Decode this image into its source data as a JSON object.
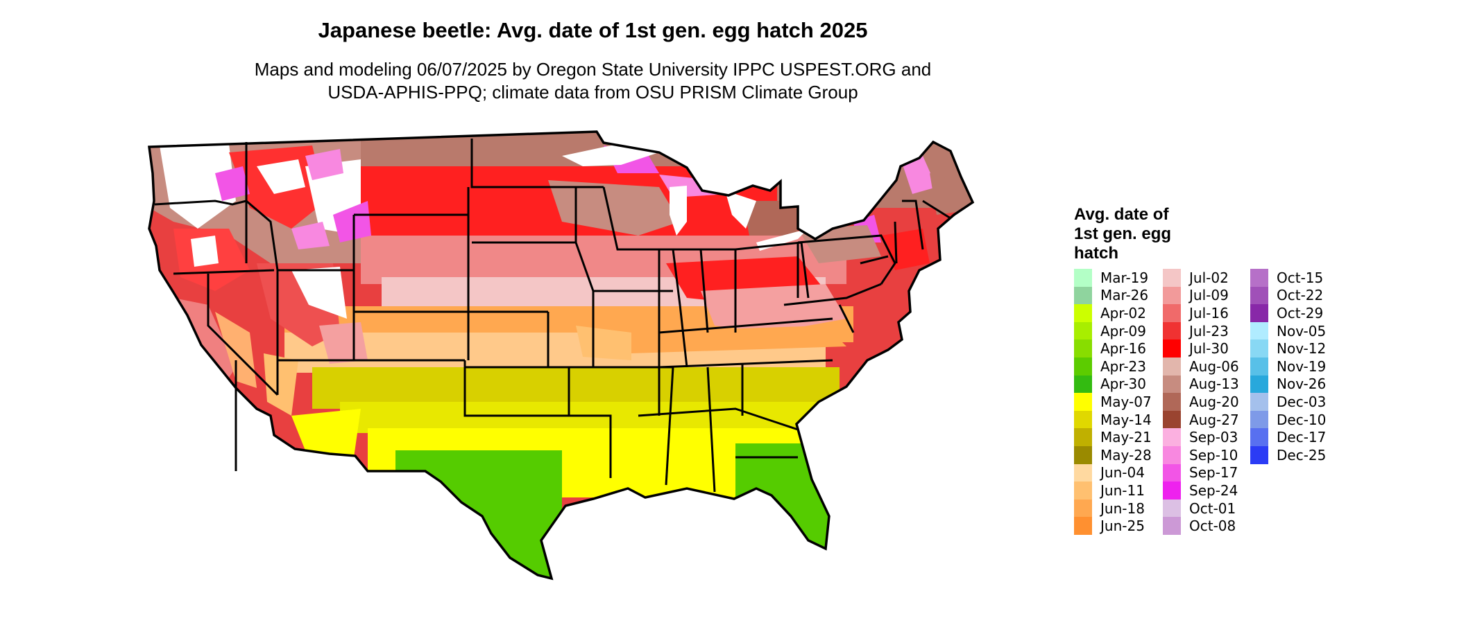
{
  "title": "Japanese beetle: Avg. date of 1st gen. egg hatch 2025",
  "subtitle": {
    "line1": "Maps and modeling 06/07/2025 by Oregon State University IPPC USPEST.ORG and",
    "line2": "USDA-APHIS-PPQ; climate data from OSU PRISM Climate Group"
  },
  "legend": {
    "title_lines": [
      "Avg. date of",
      "1st gen. egg",
      "hatch"
    ],
    "columns": [
      [
        {
          "label": "Mar-19",
          "color": "#b3ffc6"
        },
        {
          "label": "Mar-26",
          "color": "#8fd49e"
        },
        {
          "label": "Apr-02",
          "color": "#ccff00"
        },
        {
          "label": "Apr-09",
          "color": "#a8ee00"
        },
        {
          "label": "Apr-16",
          "color": "#88dd00"
        },
        {
          "label": "Apr-23",
          "color": "#5ccc00"
        },
        {
          "label": "Apr-30",
          "color": "#33bb11"
        },
        {
          "label": "May-07",
          "color": "#ffff00"
        },
        {
          "label": "May-14",
          "color": "#e0d800"
        },
        {
          "label": "May-21",
          "color": "#c0b000"
        },
        {
          "label": "May-28",
          "color": "#9a8a00"
        },
        {
          "label": "Jun-04",
          "color": "#ffd9a0"
        },
        {
          "label": "Jun-11",
          "color": "#ffc070"
        },
        {
          "label": "Jun-18",
          "color": "#ffa850"
        },
        {
          "label": "Jun-25",
          "color": "#ff9030"
        }
      ],
      [
        {
          "label": "Jul-02",
          "color": "#f4c6c6"
        },
        {
          "label": "Jul-09",
          "color": "#f29a9a"
        },
        {
          "label": "Jul-16",
          "color": "#f06a6a"
        },
        {
          "label": "Jul-23",
          "color": "#f03232"
        },
        {
          "label": "Jul-30",
          "color": "#ff0000"
        },
        {
          "label": "Aug-06",
          "color": "#e2b6ac"
        },
        {
          "label": "Aug-13",
          "color": "#c78c80"
        },
        {
          "label": "Aug-20",
          "color": "#b06858"
        },
        {
          "label": "Aug-27",
          "color": "#9a4430"
        },
        {
          "label": "Sep-03",
          "color": "#fbb0e0"
        },
        {
          "label": "Sep-10",
          "color": "#f888e0"
        },
        {
          "label": "Sep-17",
          "color": "#f255e6"
        },
        {
          "label": "Sep-24",
          "color": "#ee22ee"
        },
        {
          "label": "Oct-01",
          "color": "#dcc0e4"
        },
        {
          "label": "Oct-08",
          "color": "#cc99d6"
        }
      ],
      [
        {
          "label": "Oct-15",
          "color": "#b670c8"
        },
        {
          "label": "Oct-22",
          "color": "#a050b8"
        },
        {
          "label": "Oct-29",
          "color": "#8828a8"
        },
        {
          "label": "Nov-05",
          "color": "#b0ecff"
        },
        {
          "label": "Nov-12",
          "color": "#88d8f4"
        },
        {
          "label": "Nov-19",
          "color": "#58c0e8"
        },
        {
          "label": "Nov-26",
          "color": "#28a8dc"
        },
        {
          "label": "Dec-03",
          "color": "#a4c0ec"
        },
        {
          "label": "Dec-10",
          "color": "#7e9ae8"
        },
        {
          "label": "Dec-17",
          "color": "#5870f0"
        },
        {
          "label": "Dec-25",
          "color": "#2b3cf5"
        }
      ]
    ]
  }
}
